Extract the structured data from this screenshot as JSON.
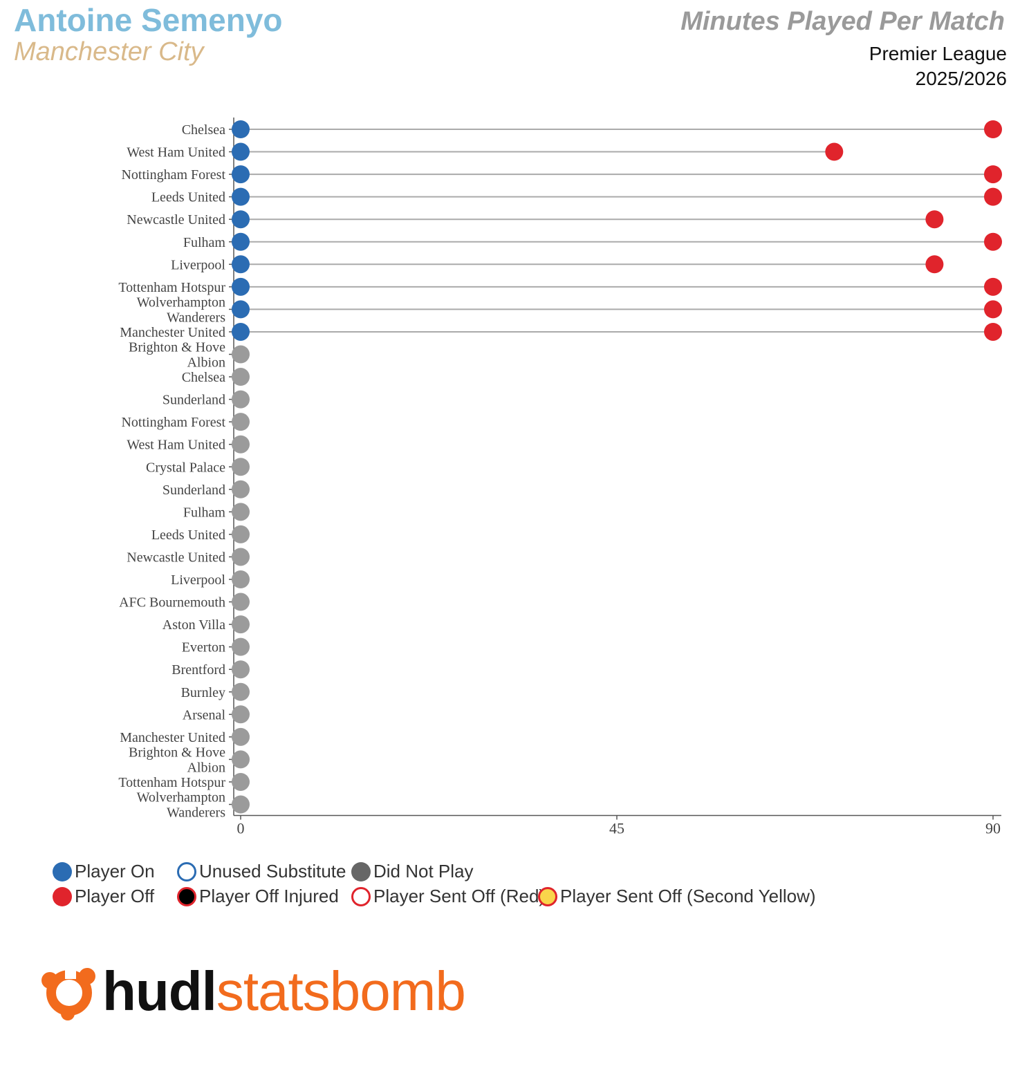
{
  "header": {
    "player_name": "Antoine Semenyo",
    "team_name": "Manchester City",
    "chart_title": "Minutes Played Per Match",
    "competition": "Premier League",
    "season": "2025/2026"
  },
  "colors": {
    "player_name": "#7fbcdb",
    "team_name": "#d9b98a",
    "player_on": "#2b6cb3",
    "player_off": "#e0242c",
    "did_not_play": "#9b9b9b",
    "axis": "#555555",
    "bar_line": "#aaaaaa",
    "second_yellow": "#f9d54b",
    "logo_orange": "#f26b1d"
  },
  "chart_data": {
    "type": "dumbbell",
    "title": "Minutes Played Per Match",
    "xlabel": "",
    "ylabel": "",
    "xlim": [
      0,
      90
    ],
    "xticks": [
      0,
      45,
      90
    ],
    "matches": [
      {
        "opponent": "Chelsea",
        "on": 0,
        "off": 90,
        "status": "played"
      },
      {
        "opponent": "West Ham United",
        "on": 0,
        "off": 71,
        "status": "played"
      },
      {
        "opponent": "Nottingham Forest",
        "on": 0,
        "off": 90,
        "status": "played"
      },
      {
        "opponent": "Leeds United",
        "on": 0,
        "off": 90,
        "status": "played"
      },
      {
        "opponent": "Newcastle United",
        "on": 0,
        "off": 83,
        "status": "played"
      },
      {
        "opponent": "Fulham",
        "on": 0,
        "off": 90,
        "status": "played"
      },
      {
        "opponent": "Liverpool",
        "on": 0,
        "off": 83,
        "status": "played"
      },
      {
        "opponent": "Tottenham Hotspur",
        "on": 0,
        "off": 90,
        "status": "played"
      },
      {
        "opponent": "Wolverhampton Wanderers",
        "on": 0,
        "off": 90,
        "status": "played"
      },
      {
        "opponent": "Manchester United",
        "on": 0,
        "off": 90,
        "status": "played"
      },
      {
        "opponent": "Brighton & Hove Albion",
        "on": null,
        "off": null,
        "status": "did_not_play"
      },
      {
        "opponent": "Chelsea",
        "on": null,
        "off": null,
        "status": "did_not_play"
      },
      {
        "opponent": "Sunderland",
        "on": null,
        "off": null,
        "status": "did_not_play"
      },
      {
        "opponent": "Nottingham Forest",
        "on": null,
        "off": null,
        "status": "did_not_play"
      },
      {
        "opponent": "West Ham United",
        "on": null,
        "off": null,
        "status": "did_not_play"
      },
      {
        "opponent": "Crystal Palace",
        "on": null,
        "off": null,
        "status": "did_not_play"
      },
      {
        "opponent": "Sunderland",
        "on": null,
        "off": null,
        "status": "did_not_play"
      },
      {
        "opponent": "Fulham",
        "on": null,
        "off": null,
        "status": "did_not_play"
      },
      {
        "opponent": "Leeds United",
        "on": null,
        "off": null,
        "status": "did_not_play"
      },
      {
        "opponent": "Newcastle United",
        "on": null,
        "off": null,
        "status": "did_not_play"
      },
      {
        "opponent": "Liverpool",
        "on": null,
        "off": null,
        "status": "did_not_play"
      },
      {
        "opponent": "AFC Bournemouth",
        "on": null,
        "off": null,
        "status": "did_not_play"
      },
      {
        "opponent": "Aston Villa",
        "on": null,
        "off": null,
        "status": "did_not_play"
      },
      {
        "opponent": "Everton",
        "on": null,
        "off": null,
        "status": "did_not_play"
      },
      {
        "opponent": "Brentford",
        "on": null,
        "off": null,
        "status": "did_not_play"
      },
      {
        "opponent": "Burnley",
        "on": null,
        "off": null,
        "status": "did_not_play"
      },
      {
        "opponent": "Arsenal",
        "on": null,
        "off": null,
        "status": "did_not_play"
      },
      {
        "opponent": "Manchester United",
        "on": null,
        "off": null,
        "status": "did_not_play"
      },
      {
        "opponent": "Brighton & Hove Albion",
        "on": null,
        "off": null,
        "status": "did_not_play"
      },
      {
        "opponent": "Tottenham Hotspur",
        "on": null,
        "off": null,
        "status": "did_not_play"
      },
      {
        "opponent": "Wolverhampton Wanderers",
        "on": null,
        "off": null,
        "status": "did_not_play"
      }
    ]
  },
  "legend": {
    "player_on": "Player On",
    "unused_substitute": "Unused Substitute",
    "did_not_play": "Did Not Play",
    "player_off": "Player Off",
    "player_off_injured": "Player Off Injured",
    "player_sent_off_red": "Player Sent Off (Red)",
    "player_sent_off_second_yellow": "Player Sent Off (Second Yellow)"
  },
  "logo": {
    "part1": "hudl",
    "part2": "statsbomb",
    "icon": "statsbomb-logo-icon"
  }
}
